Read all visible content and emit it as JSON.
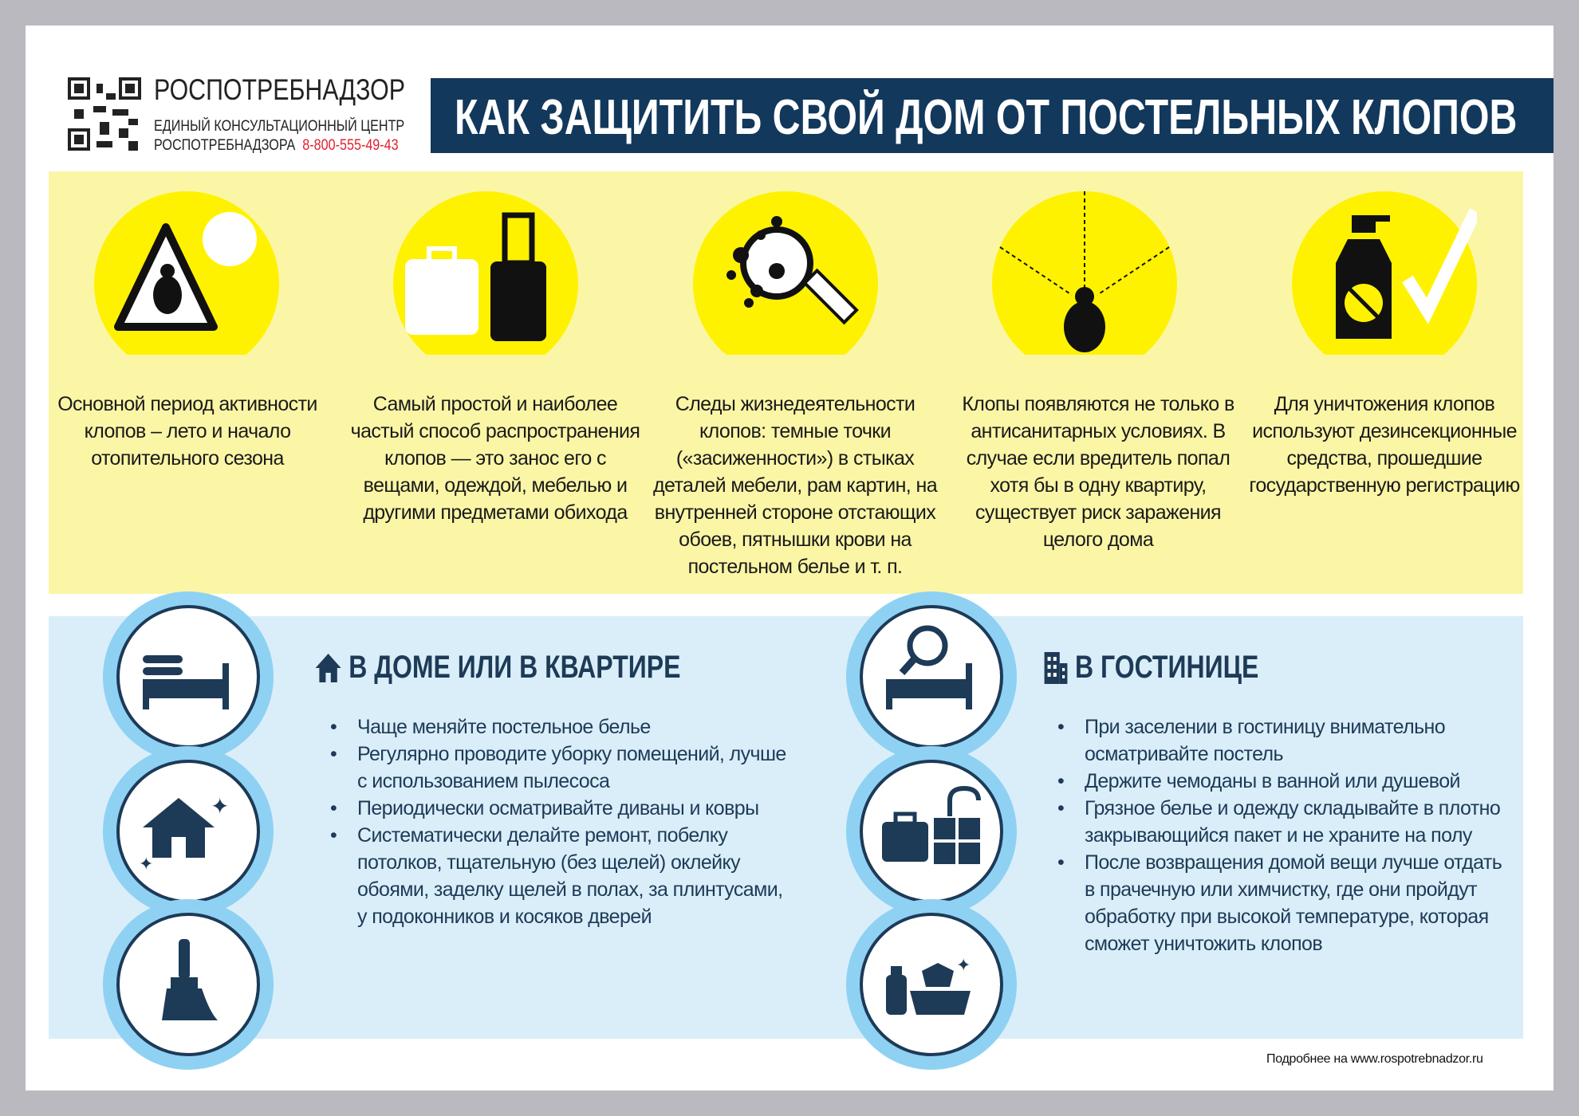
{
  "header": {
    "org": "РОСПОТРЕБНАДЗОР",
    "center_line1": "ЕДИНЫЙ КОНСУЛЬТАЦИОННЫЙ ЦЕНТР",
    "center_line2": "РОСПОТРЕБНАДЗОРА",
    "phone": "8-800-555-49-43",
    "title": "КАК ЗАЩИТИТЬ СВОЙ ДОМ ОТ ПОСТЕЛЬНЫХ КЛОПОВ"
  },
  "facts": [
    {
      "icon": "bedbug-warning-icon",
      "text": "Основной период активности клопов – лето и начало отопительного сезона"
    },
    {
      "icon": "luggage-icon",
      "text": "Самый простой и наиболее частый способ распространения клопов — это занос его с вещами, одеждой, мебелью и другими предметами обихода"
    },
    {
      "icon": "magnifier-icon",
      "text": "Следы жизнедеятельности клопов: темные точки («засиженности») в стыках деталей мебели, рам картин, на внутренней стороне отстающих обоев, пятнышки крови на постельном белье и т. п."
    },
    {
      "icon": "bedbug-icon",
      "text": "Клопы появляются не только в антисанитарных условиях. В случае если вредитель попал хотя бы в одну квартиру, существует риск заражения целого дома"
    },
    {
      "icon": "insecticide-icon",
      "text": "Для уничтожения клопов используют дезинсекционные средства, прошедшие государственную регистрацию"
    }
  ],
  "home": {
    "title": "В ДОМЕ ИЛИ В КВАРТИРЕ",
    "items": [
      "Чаще меняйте постельное белье",
      "Регулярно проводите уборку помещений, лучше с использованием пылесоса",
      "Периодически осматривайте диваны и ковры",
      "Систематически делайте ремонт, побелку потолков, тщательную (без щелей) оклейку обоями, заделку щелей в полах, за плинтусами, у подоконников и косяков дверей"
    ]
  },
  "hotel": {
    "title": "В ГОСТИНИЦЕ",
    "items": [
      "При заселении в гостиницу внимательно осматривайте постель",
      "Держите чемоданы в ванной или душевой",
      "Грязное белье и одежду складывайте в плотно закрывающийся пакет и не храните на полу",
      "После возвращения домой вещи лучше отдать в прачечную или химчистку, где они пройдут обработку при высокой температуре, которая сможет уничтожить клопов"
    ]
  },
  "footer": "Подробнее на www.rospotrebnadzor.ru",
  "colors": {
    "navy": "#12385c",
    "yellow": "#fff200",
    "red": "#e0212e",
    "lightblue": "#8fd1f3"
  }
}
